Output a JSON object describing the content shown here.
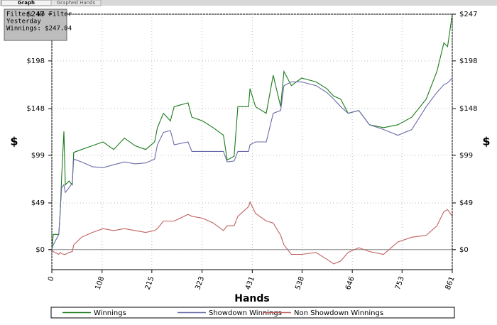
{
  "tabs": [
    "Graph",
    "Graphed Hands"
  ],
  "info": [
    "Filter: No Filter",
    "Yesterday",
    "Winnings: $247.04"
  ],
  "chart_data": {
    "type": "line",
    "xlabel": "Hands",
    "ylabel": "$",
    "x": [
      0,
      3,
      15,
      18,
      21,
      26,
      29,
      37,
      44,
      47,
      64,
      87,
      110,
      133,
      156,
      179,
      202,
      221,
      227,
      240,
      255,
      263,
      293,
      301,
      324,
      347,
      369,
      377,
      392,
      400,
      423,
      426,
      438,
      461,
      476,
      492,
      499,
      515,
      537,
      568,
      591,
      606,
      621,
      637,
      660,
      683,
      713,
      744,
      774,
      805,
      828,
      843,
      851,
      861
    ],
    "series": [
      {
        "name": "Winnings",
        "color": "#1a7a1a",
        "values": [
          0,
          16,
          16,
          39,
          76,
          124,
          68,
          72,
          68,
          102,
          105,
          109,
          113,
          105,
          117,
          109,
          105,
          113,
          128,
          143,
          135,
          150,
          154,
          139,
          135,
          128,
          120,
          94,
          98,
          150,
          150,
          169,
          150,
          143,
          183,
          150,
          187,
          172,
          180,
          176,
          169,
          161,
          158,
          143,
          146,
          131,
          128,
          131,
          139,
          158,
          187,
          217,
          213,
          247
        ]
      },
      {
        "name": "Showdown Winnings",
        "color": "#6a6aa8",
        "values": [
          0,
          5,
          16,
          40,
          65,
          68,
          60,
          65,
          70,
          95,
          92,
          87,
          86,
          89,
          92,
          90,
          91,
          95,
          110,
          123,
          125,
          110,
          113,
          103,
          103,
          103,
          103,
          92,
          93,
          103,
          103,
          110,
          113,
          113,
          143,
          146,
          172,
          176,
          176,
          172,
          165,
          158,
          150,
          143,
          146,
          131,
          126,
          120,
          126,
          150,
          165,
          173,
          175,
          180
        ]
      },
      {
        "name": "Non Showdown Winnings",
        "color": "#c06060",
        "values": [
          0,
          -2,
          -5,
          -3,
          -4,
          -5,
          -5,
          -3,
          -2,
          5,
          13,
          18,
          22,
          20,
          22,
          20,
          18,
          20,
          22,
          30,
          30,
          30,
          37,
          35,
          33,
          28,
          20,
          25,
          25,
          35,
          45,
          50,
          38,
          30,
          28,
          15,
          5,
          -5,
          -5,
          -3,
          -10,
          -15,
          -12,
          -3,
          2,
          -2,
          -5,
          8,
          13,
          15,
          25,
          40,
          42,
          35
        ]
      }
    ],
    "xlim": [
      0,
      861
    ],
    "xticks": [
      0,
      108,
      215,
      323,
      431,
      538,
      646,
      753,
      861
    ],
    "ylim": [
      -21,
      247
    ],
    "yticks": [
      {
        "value": 0,
        "label": "$0"
      },
      {
        "value": 49,
        "label": "$49"
      },
      {
        "value": 99,
        "label": "$99"
      },
      {
        "value": 148,
        "label": "$148"
      },
      {
        "value": 198,
        "label": "$198"
      },
      {
        "value": 247,
        "label": "$247"
      }
    ],
    "grid": true
  }
}
